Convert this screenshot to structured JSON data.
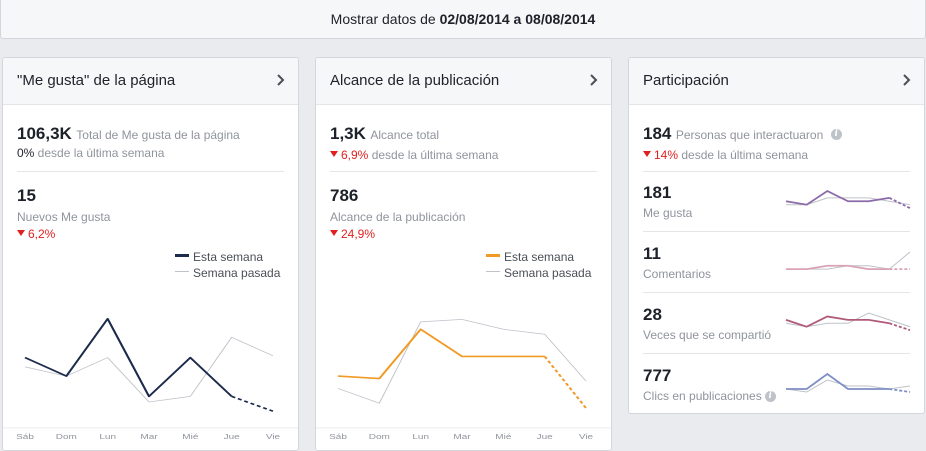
{
  "date_range": {
    "prefix": "Mostrar datos de ",
    "start": "02/08/2014",
    "connector": " a ",
    "end": "08/08/2014"
  },
  "likes_card": {
    "title": "\"Me gusta\" de la página",
    "total_value": "106,3K",
    "total_label": "Total de Me gusta de la página",
    "total_change": "0%",
    "total_change_label": " desde la última semana",
    "new_value": "15",
    "new_label": "Nuevos Me gusta",
    "new_change": "6,2%",
    "legend_this": "Esta semana",
    "legend_last": "Semana pasada",
    "days": [
      "Sáb",
      "Dom",
      "Lun",
      "Mar",
      "Mié",
      "Jue",
      "Vie"
    ],
    "this_week": [
      3.4,
      2.4,
      5.5,
      1.3,
      3.4,
      1.3,
      0.5
    ],
    "last_week": [
      2.9,
      2.4,
      3.4,
      1.0,
      1.3,
      4.5,
      3.5
    ]
  },
  "reach_card": {
    "title": "Alcance de la publicación",
    "total_value": "1,3K",
    "total_label": "Alcance total",
    "total_change": "6,9%",
    "total_change_label": " desde la última semana",
    "reach_value": "786",
    "reach_label": "Alcance de la publicación",
    "reach_change": "24,9%",
    "legend_this": "Esta semana",
    "legend_last": "Semana pasada",
    "days": [
      "Sáb",
      "Dom",
      "Lun",
      "Mar",
      "Mié",
      "Jue",
      "Vie"
    ],
    "this_week": [
      230,
      220,
      420,
      310,
      310,
      310,
      100
    ],
    "last_week": [
      180,
      120,
      450,
      460,
      420,
      400,
      210
    ]
  },
  "engagement_card": {
    "title": "Participación",
    "total_value": "184",
    "total_label": "Personas que interactuaron",
    "total_change": "14%",
    "total_change_label": " desde la última semana",
    "metrics": [
      {
        "value": "181",
        "label": "Me gusta",
        "color": "#8b6aa8",
        "this_week": [
          4,
          3,
          7,
          4,
          4,
          5,
          2
        ],
        "last_week": [
          3,
          3,
          5,
          5,
          5,
          4,
          3
        ]
      },
      {
        "value": "11",
        "label": "Comentarios",
        "color": "#d9a3b5",
        "this_week": [
          2,
          2,
          3,
          3,
          2,
          2,
          2
        ],
        "last_week": [
          2,
          2,
          2,
          3,
          3,
          2,
          7
        ]
      },
      {
        "value": "28",
        "label": "Veces que se compartió",
        "color": "#b05a7a",
        "this_week": [
          5,
          3,
          6,
          5,
          5,
          4,
          2
        ],
        "last_week": [
          4,
          3,
          4,
          4,
          7,
          5,
          3
        ]
      },
      {
        "value": "777",
        "label": "Clics en publicaciones",
        "color": "#7d8fc4",
        "this_week": [
          3,
          3,
          8,
          3,
          3,
          3,
          2
        ],
        "last_week": [
          3,
          2,
          6,
          4,
          4,
          3,
          4
        ]
      }
    ]
  },
  "colors": {
    "likes_line": "#1c2b4c",
    "reach_line": "#f19a25",
    "last_week_line": "#bec2c9",
    "negative": "#e02020"
  }
}
